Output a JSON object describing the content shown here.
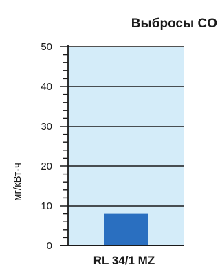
{
  "chart_data": {
    "type": "bar",
    "title": "Выбросы CO",
    "ylabel": "мг/кВт·ч",
    "xlabel": "",
    "categories": [
      "RL 34/1 MZ"
    ],
    "values": [
      8
    ],
    "ylim": [
      0,
      50
    ],
    "yticks": [
      0,
      10,
      20,
      30,
      40,
      50
    ],
    "yticks_labels": [
      "0",
      "10",
      "20",
      "30",
      "40",
      "50"
    ],
    "minor_tick_step": 2,
    "grid": true,
    "legend": "none",
    "colors": {
      "plot_background": "#d4ecf9",
      "bar": "#2a6fc0",
      "text": "#1a1a1a",
      "grid": "#1a1a1a"
    }
  }
}
